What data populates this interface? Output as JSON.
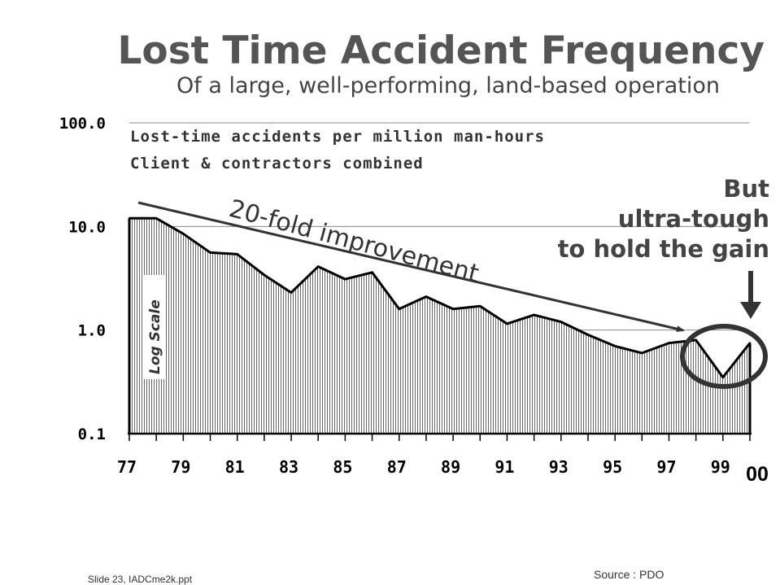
{
  "slide": {
    "title": "Lost Time Accident Frequency",
    "subtitle": "Of a large, well-performing, land-based operation",
    "footer": "Slide 23, IADCme2k.ppt",
    "source": "Source : PDO"
  },
  "chart_data": {
    "type": "area",
    "x": [
      "77",
      "78",
      "79",
      "80",
      "81",
      "82",
      "83",
      "84",
      "85",
      "86",
      "87",
      "88",
      "89",
      "90",
      "91",
      "92",
      "93",
      "94",
      "95",
      "96",
      "97",
      "98",
      "99",
      "00"
    ],
    "series": [
      {
        "values": [
          12.0,
          12.0,
          8.5,
          5.6,
          5.4,
          3.4,
          2.3,
          4.1,
          3.1,
          3.6,
          1.6,
          2.1,
          1.6,
          1.7,
          1.15,
          1.4,
          1.2,
          0.9,
          0.7,
          0.6,
          0.75,
          0.8,
          0.35,
          0.75
        ]
      }
    ],
    "y_scale": "log",
    "ylim": [
      0.1,
      100.0
    ],
    "y_ticks": [
      "100.0",
      "10.0",
      "1.0",
      "0.1"
    ],
    "x_tick_labels": [
      "77",
      "79",
      "81",
      "83",
      "85",
      "87",
      "89",
      "91",
      "93",
      "95",
      "97",
      "99",
      "00"
    ],
    "description_lines": [
      "Lost-time accidents per million man-hours",
      "Client & contractors combined"
    ],
    "axis_note": "Log Scale",
    "trend_annotation": "20-fold improvement",
    "callout_lines": [
      "But",
      "ultra-tough",
      "to hold the gain"
    ],
    "grid": true,
    "fill": "vertical-hatch",
    "line_color": "#000000",
    "arrow_color": "#333333",
    "highlight_color": "#333333"
  }
}
